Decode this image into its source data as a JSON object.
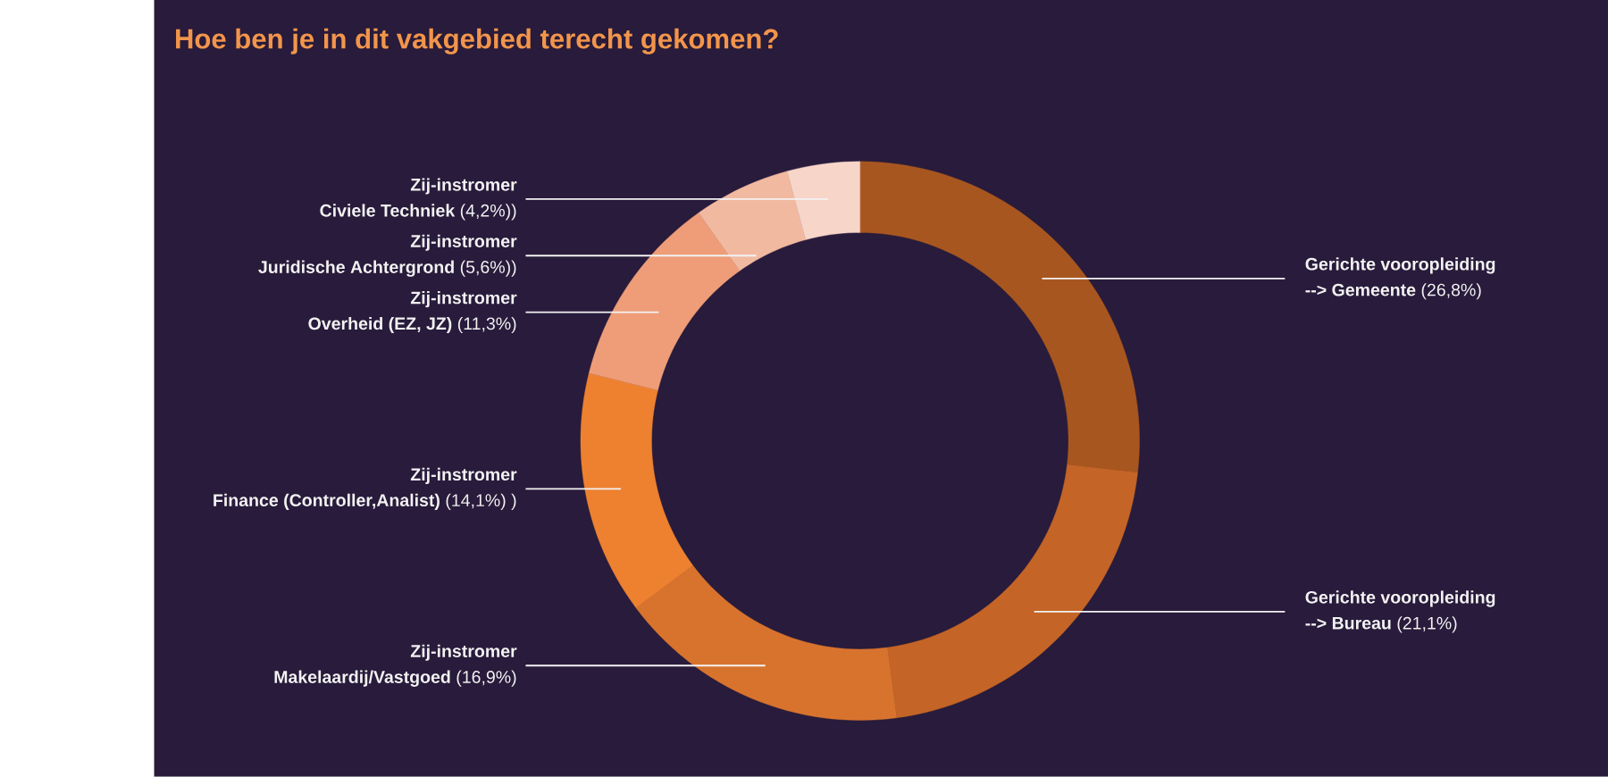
{
  "chart_data": {
    "type": "donut",
    "title": "Hoe ben je in dit vakgebied terecht gekomen?",
    "categories": [
      "Gerichte vooropleiding\n--> Gemeente",
      "Gerichte vooropleiding\n--> Bureau",
      "Zij-instromer\nMakelaardij/Vastgoed",
      "Zij-instromer\nFinance (Controller,Analist)",
      "Zij-instromer\nOverheid (EZ, JZ)",
      "Zij-instromer\nJuridische Achtergrond",
      "Zij-instromer\nCiviele Techniek"
    ],
    "values": [
      26.8,
      21.1,
      16.9,
      14.1,
      11.3,
      5.6,
      4.2
    ],
    "colors": [
      "#a8561f",
      "#c46426",
      "#d8732e",
      "#ed8130",
      "#ef9d78",
      "#f2b9a1",
      "#f7d5c9"
    ],
    "value_labels": [
      "(26,8%)",
      "(21,1%)",
      "(16,9%)",
      "(14,1%) )",
      "(11,3%)",
      "(5,6%))",
      "(4,2%))"
    ]
  }
}
